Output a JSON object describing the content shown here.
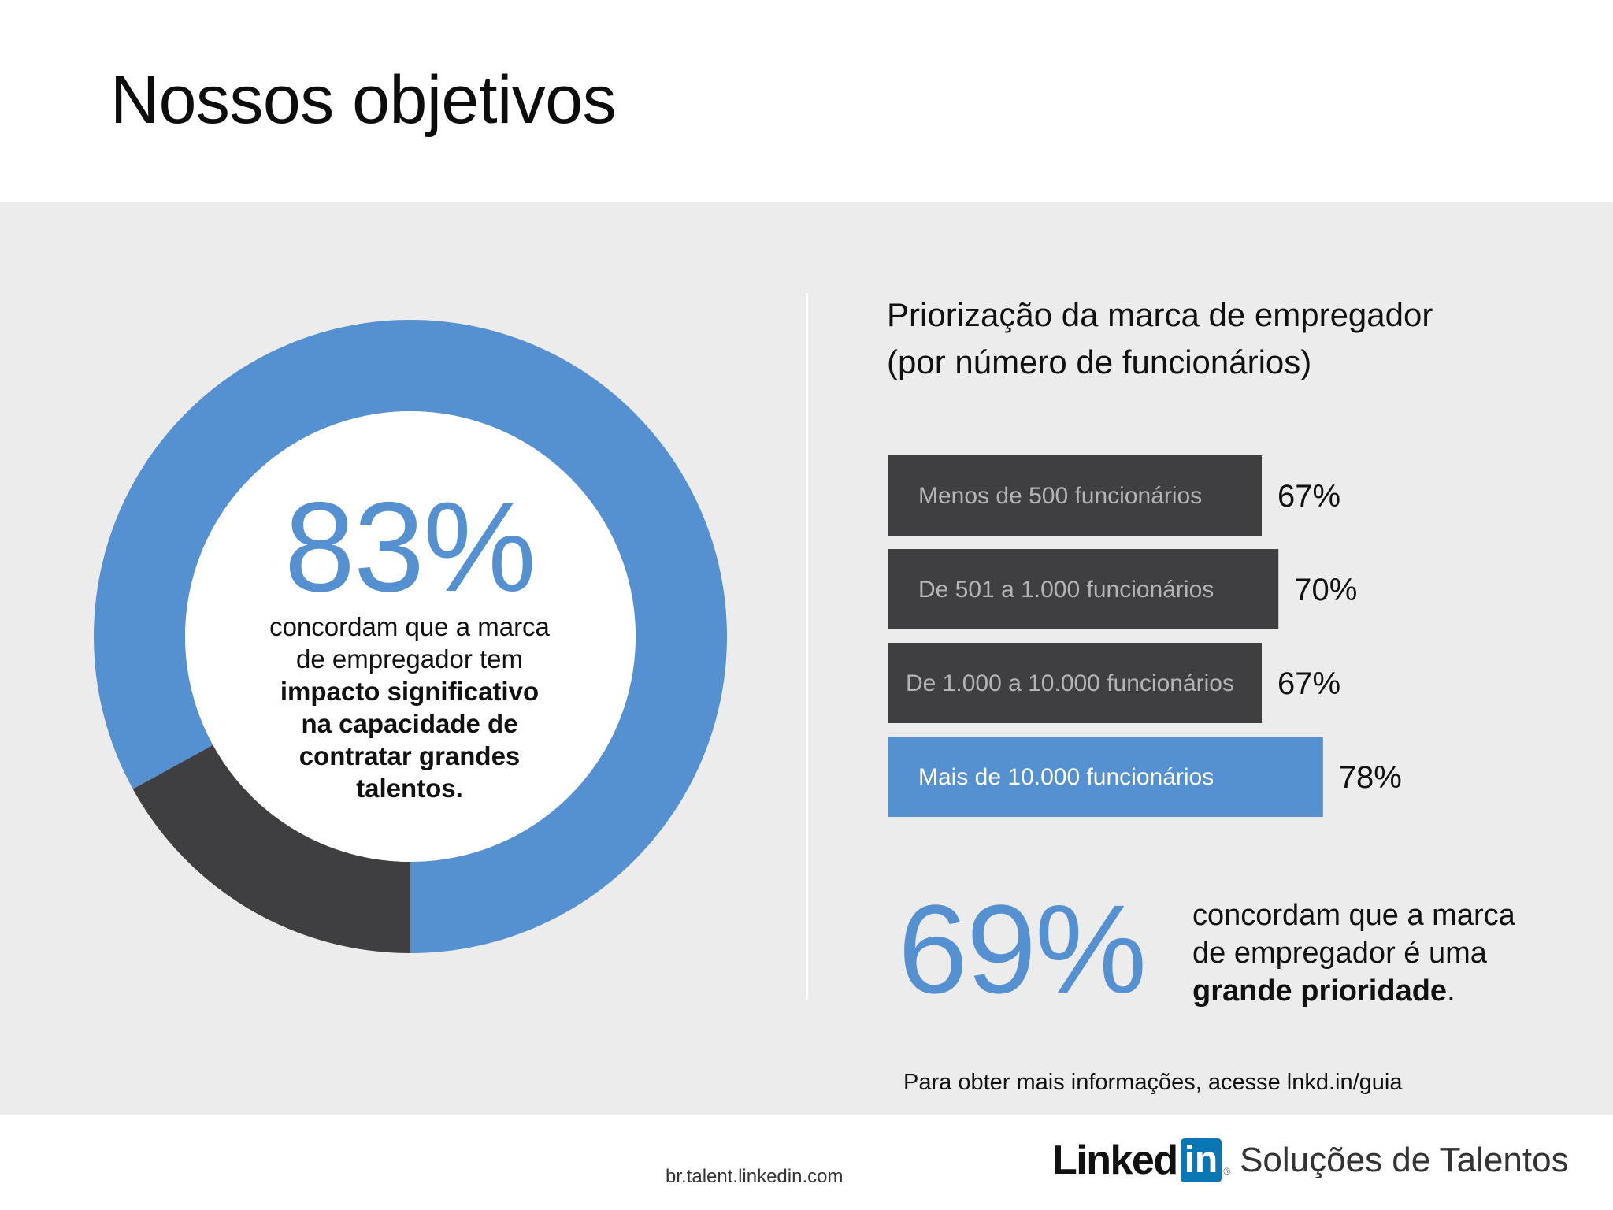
{
  "title": "Nossos objetivos",
  "donut": {
    "percent_label": "83%",
    "caption_lines": [
      "concordam que a marca",
      "de empregador tem"
    ],
    "caption_bold_lines": [
      "impacto significativo",
      "na capacidade de",
      "contratar grandes",
      "talentos."
    ]
  },
  "chart_data": [
    {
      "type": "pie",
      "values": [
        83,
        17
      ],
      "labels": [
        "",
        ""
      ],
      "colors": [
        "#5591d1",
        "#3f3f42"
      ]
    },
    {
      "type": "bar",
      "title": "Priorização da marca de empregador\n(por número de funcionários)",
      "title_lines": [
        "Priorização da marca de empregador",
        "(por número de funcionários)"
      ],
      "categories": [
        "Menos de 500 funcionários",
        "De 501 a 1.000 funcionários",
        "De 1.000 a 10.000 funcionários",
        "Mais de 10.000 funcionários"
      ],
      "values": [
        67,
        70,
        67,
        78
      ],
      "value_labels": [
        "67%",
        "70%",
        "67%",
        "78%"
      ],
      "bar_colors": [
        "#3f3f42",
        "#3f3f42",
        "#3f3f42",
        "#5591d1"
      ],
      "label_colors": [
        "#b4b4b7",
        "#b4b4b7",
        "#b4b4b7",
        "#ffffff"
      ],
      "orientation": "horizontal"
    }
  ],
  "stat2": {
    "percent_label": "69%",
    "caption_lines": [
      "concordam que a marca",
      "de empregador é uma"
    ],
    "caption_bold": "grande prioridade",
    "caption_end": "."
  },
  "more_info": "Para obter mais informações, acesse lnkd.in/guia",
  "footer": {
    "url": "br.talent.linkedin.com",
    "logo_word": "Linked",
    "logo_in": "in",
    "logo_dot": "®",
    "product": "Soluções de Talentos"
  }
}
